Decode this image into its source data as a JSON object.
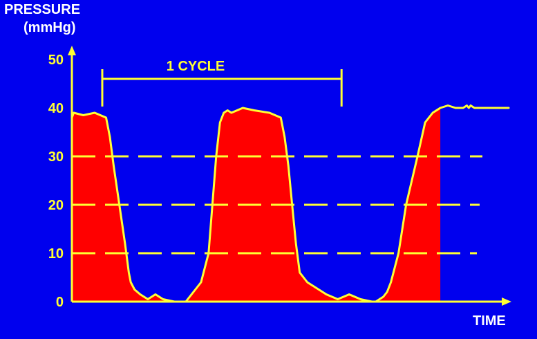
{
  "colors": {
    "background": "#0000ee",
    "axis": "#ffff33",
    "label": "#ffffff",
    "tick_label": "#ffff33",
    "fill": "#ff0000"
  },
  "chart_data": {
    "type": "area",
    "title": "",
    "ylabel_lines": [
      "PRESSURE",
      "(mmHg)"
    ],
    "xlabel": "TIME",
    "ylim": [
      0,
      50
    ],
    "yticks": [
      "0",
      "10",
      "20",
      "30",
      "40",
      "50"
    ],
    "ytick_values": [
      0,
      10,
      20,
      30,
      40,
      50
    ],
    "grid": {
      "dashed_lines_at": [
        10,
        20,
        30
      ]
    },
    "annotation": {
      "text": "1 CYCLE",
      "from_x": 0.08,
      "to_x": 0.71
    },
    "x_units": "arbitrary time (1 cycle = 0.63)",
    "series": [
      {
        "x": [
          0.0,
          0.005,
          0.03,
          0.06,
          0.09,
          0.1,
          0.11,
          0.125,
          0.14,
          0.15,
          0.155,
          0.165,
          0.18,
          0.2,
          0.22,
          0.24,
          0.27,
          0.3,
          0.34,
          0.36,
          0.37,
          0.38,
          0.39,
          0.4,
          0.41,
          0.42,
          0.45,
          0.48,
          0.52,
          0.55,
          0.56,
          0.57,
          0.58,
          0.59,
          0.6,
          0.62,
          0.65,
          0.67,
          0.7,
          0.73,
          0.76,
          0.79,
          0.8,
          0.81,
          0.82,
          0.83,
          0.84,
          0.86,
          0.88,
          0.91,
          0.93,
          0.95,
          0.97,
          0.99,
          1.01,
          1.03,
          1.04,
          1.045,
          1.05,
          1.06,
          1.07,
          1.08,
          1.09,
          1.12,
          1.15
        ],
        "y": [
          38,
          39,
          38.5,
          39,
          38,
          34,
          28,
          20,
          12,
          6,
          4,
          2.5,
          1.5,
          0.5,
          1.5,
          0.5,
          0,
          0,
          4,
          10,
          20,
          30,
          37,
          39,
          39.5,
          39,
          40,
          39.5,
          39,
          38,
          34,
          28,
          20,
          12,
          6,
          4,
          2.5,
          1.5,
          0.5,
          1.5,
          0.5,
          0,
          0,
          0.5,
          1,
          2,
          4,
          10,
          20,
          30,
          37,
          39,
          40,
          40.5,
          40,
          40,
          40.5,
          40,
          40.5,
          40,
          40,
          40,
          40,
          40,
          40
        ],
        "filled_until_x": 0.97
      }
    ]
  }
}
